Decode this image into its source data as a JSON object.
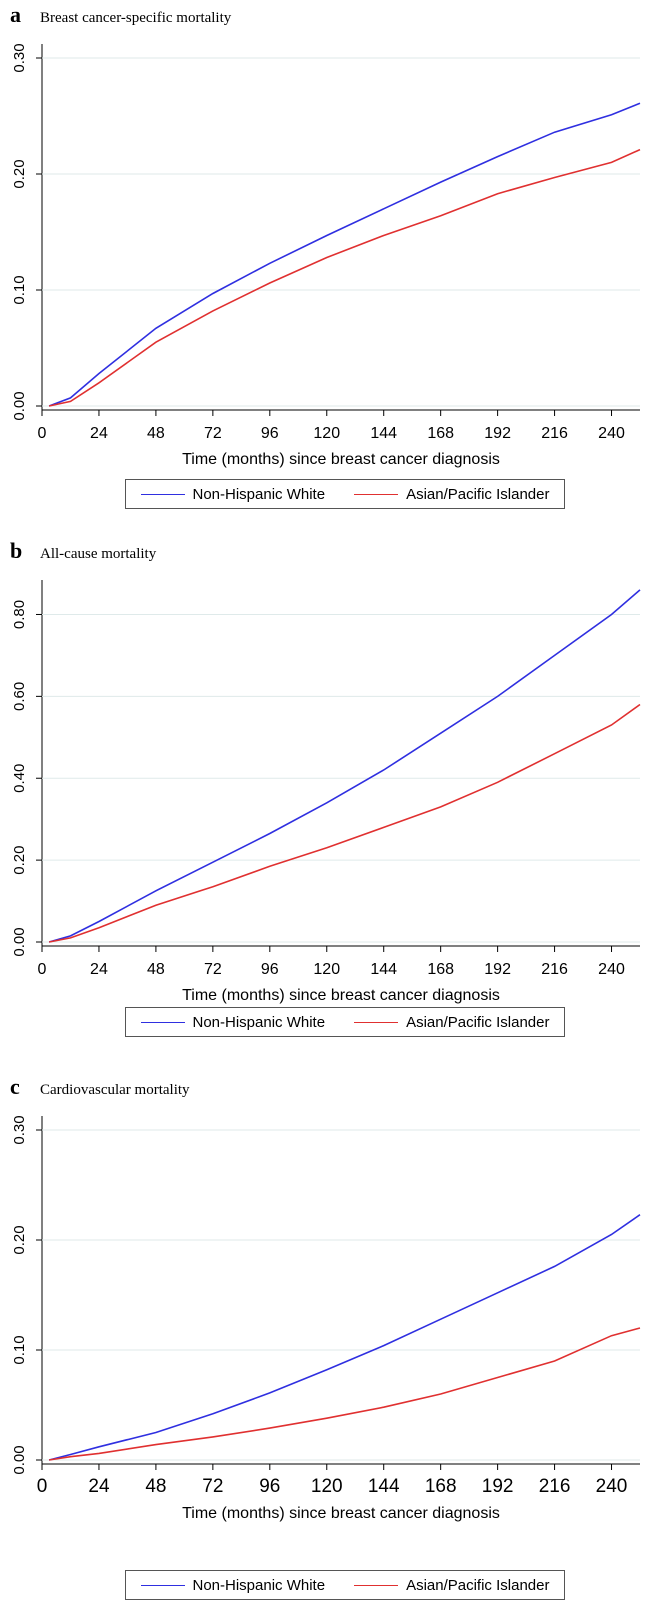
{
  "panels": [
    {
      "letter": "a",
      "title": "Breast cancer-specific mortality",
      "xlabel": "Time (months) since breast cancer diagnosis",
      "yticks": [
        "0.00",
        "0.10",
        "0.20",
        "0.30"
      ]
    },
    {
      "letter": "b",
      "title": "All-cause mortality",
      "xlabel": "Time (months) since breast cancer diagnosis",
      "yticks": [
        "0.00",
        "0.20",
        "0.40",
        "0.60",
        "0.80"
      ]
    },
    {
      "letter": "c",
      "title": "Cardiovascular mortality",
      "xlabel": "Time (months) since breast cancer diagnosis",
      "yticks": [
        "0.00",
        "0.10",
        "0.20",
        "0.30"
      ]
    }
  ],
  "xticks": [
    "0",
    "24",
    "48",
    "72",
    "96",
    "120",
    "144",
    "168",
    "192",
    "216",
    "240"
  ],
  "legend": [
    {
      "name": "Non-Hispanic White",
      "color": "#2f2fe0"
    },
    {
      "name": "Asian/Pacific Islander",
      "color": "#e03030"
    }
  ],
  "chart_data": [
    {
      "type": "line",
      "title": "Breast cancer-specific mortality",
      "xlabel": "Time (months) since breast cancer diagnosis",
      "ylabel": "",
      "xlim": [
        0,
        252
      ],
      "ylim": [
        0,
        0.3
      ],
      "xticks": [
        0,
        24,
        48,
        72,
        96,
        120,
        144,
        168,
        192,
        216,
        240
      ],
      "yticks": [
        0,
        0.1,
        0.2,
        0.3
      ],
      "grid": true,
      "legend_position": "bottom",
      "x": [
        3,
        12,
        24,
        48,
        72,
        96,
        120,
        144,
        168,
        192,
        216,
        240,
        252
      ],
      "series": [
        {
          "name": "Non-Hispanic White",
          "color": "#2f2fe0",
          "values": [
            0.0,
            0.007,
            0.028,
            0.067,
            0.097,
            0.123,
            0.147,
            0.17,
            0.193,
            0.215,
            0.236,
            0.251,
            0.261
          ]
        },
        {
          "name": "Asian/Pacific Islander",
          "color": "#e03030",
          "values": [
            0.0,
            0.004,
            0.02,
            0.055,
            0.082,
            0.106,
            0.128,
            0.147,
            0.164,
            0.183,
            0.197,
            0.21,
            0.221
          ]
        }
      ]
    },
    {
      "type": "line",
      "title": "All-cause mortality",
      "xlabel": "Time (months) since breast cancer diagnosis",
      "ylabel": "",
      "xlim": [
        0,
        252
      ],
      "ylim": [
        0,
        0.85
      ],
      "xticks": [
        0,
        24,
        48,
        72,
        96,
        120,
        144,
        168,
        192,
        216,
        240
      ],
      "yticks": [
        0,
        0.2,
        0.4,
        0.6,
        0.8
      ],
      "grid": true,
      "legend_position": "bottom",
      "x": [
        3,
        12,
        24,
        48,
        72,
        96,
        120,
        144,
        168,
        192,
        216,
        240,
        252
      ],
      "series": [
        {
          "name": "Non-Hispanic White",
          "color": "#2f2fe0",
          "values": [
            0.0,
            0.015,
            0.05,
            0.125,
            0.195,
            0.265,
            0.34,
            0.42,
            0.51,
            0.6,
            0.7,
            0.8,
            0.86
          ]
        },
        {
          "name": "Asian/Pacific Islander",
          "color": "#e03030",
          "values": [
            0.0,
            0.01,
            0.035,
            0.09,
            0.135,
            0.185,
            0.23,
            0.28,
            0.33,
            0.39,
            0.46,
            0.53,
            0.58
          ]
        }
      ]
    },
    {
      "type": "line",
      "title": "Cardiovascular mortality",
      "xlabel": "Time (months) since breast cancer diagnosis",
      "ylabel": "",
      "xlim": [
        0,
        252
      ],
      "ylim": [
        0,
        0.3
      ],
      "xticks": [
        0,
        24,
        48,
        72,
        96,
        120,
        144,
        168,
        192,
        216,
        240
      ],
      "yticks": [
        0,
        0.1,
        0.2,
        0.3
      ],
      "grid": true,
      "legend_position": "bottom",
      "x": [
        3,
        12,
        24,
        48,
        72,
        96,
        120,
        144,
        168,
        192,
        216,
        240,
        252
      ],
      "series": [
        {
          "name": "Non-Hispanic White",
          "color": "#2f2fe0",
          "values": [
            0.0,
            0.005,
            0.012,
            0.025,
            0.042,
            0.061,
            0.082,
            0.104,
            0.128,
            0.152,
            0.176,
            0.205,
            0.223
          ]
        },
        {
          "name": "Asian/Pacific Islander",
          "color": "#e03030",
          "values": [
            0.0,
            0.003,
            0.006,
            0.014,
            0.021,
            0.029,
            0.038,
            0.048,
            0.06,
            0.075,
            0.09,
            0.113,
            0.12
          ]
        }
      ]
    }
  ]
}
